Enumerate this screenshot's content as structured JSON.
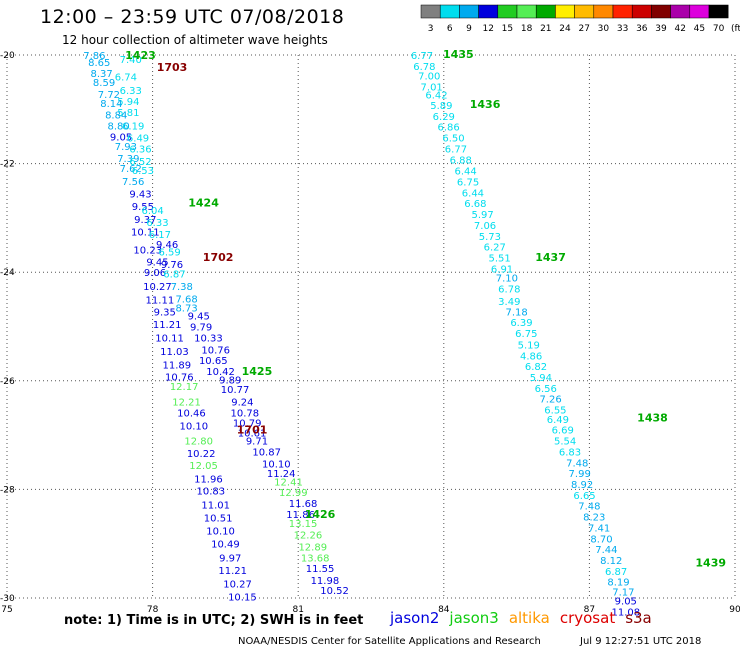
{
  "title": "12:00 – 23:59 UTC 07/08/2018",
  "subtitle": "12 hour collection of altimeter wave heights",
  "note": "note: 1) Time is in UTC; 2) SWH is in feet",
  "satellites": [
    {
      "name": "jason2",
      "color": "#0000dd"
    },
    {
      "name": "jason3",
      "color": "#11cc11"
    },
    {
      "name": "altika",
      "color": "#ff9900"
    },
    {
      "name": "cryosat",
      "color": "#dd0000"
    },
    {
      "name": "s3a",
      "color": "#880000"
    }
  ],
  "footer_left": "NOAA/NESDIS Center for Satellite Applications and Research",
  "footer_right": "Jul  9 12:27:51 UTC 2018",
  "colorscale": {
    "labels": [
      "3",
      "6",
      "9",
      "12",
      "15",
      "18",
      "21",
      "24",
      "27",
      "30",
      "33",
      "36",
      "39",
      "42",
      "45",
      "70",
      "(ft)"
    ],
    "colors": [
      "#808080",
      "#00ddee",
      "#00aaee",
      "#0000dd",
      "#22cc22",
      "#55ee55",
      "#00aa00",
      "#ffee00",
      "#ffbb00",
      "#ff8800",
      "#ff2200",
      "#cc0000",
      "#800000",
      "#aa00aa",
      "#dd00dd",
      "#000000"
    ]
  },
  "chart_data": {
    "type": "scatter",
    "xlim": [
      75,
      90
    ],
    "ylim": [
      -30,
      -20
    ],
    "xticks": [
      75,
      78,
      81,
      84,
      87,
      90
    ],
    "yticks": [
      -20,
      -22,
      -24,
      -26,
      -28,
      -30
    ],
    "passes": [
      {
        "label": "1423",
        "color": "#00aa00",
        "lon": 77.75,
        "lat": -20.0
      },
      {
        "label": "1703",
        "color": "#880000",
        "lon": 78.4,
        "lat": -20.22
      },
      {
        "label": "1424",
        "color": "#00aa00",
        "lon": 79.05,
        "lat": -22.72
      },
      {
        "label": "1702",
        "color": "#880000",
        "lon": 79.35,
        "lat": -23.72
      },
      {
        "label": "1425",
        "color": "#00aa00",
        "lon": 80.15,
        "lat": -25.82
      },
      {
        "label": "1701",
        "color": "#880000",
        "lon": 80.05,
        "lat": -26.9
      },
      {
        "label": "1426",
        "color": "#00aa00",
        "lon": 81.45,
        "lat": -28.45
      },
      {
        "label": "1435",
        "color": "#00aa00",
        "lon": 84.3,
        "lat": -19.98
      },
      {
        "label": "1436",
        "color": "#00aa00",
        "lon": 84.85,
        "lat": -20.9
      },
      {
        "label": "1437",
        "color": "#00aa00",
        "lon": 86.2,
        "lat": -23.72
      },
      {
        "label": "1438",
        "color": "#00aa00",
        "lon": 88.3,
        "lat": -26.68
      },
      {
        "label": "1439",
        "color": "#00aa00",
        "lon": 89.5,
        "lat": -29.35
      }
    ],
    "points": [
      {
        "v": "7.86",
        "color": "#00aaee",
        "lon": 76.8,
        "lat": -20.0
      },
      {
        "v": "7.40",
        "color": "#00ddee",
        "lon": 77.55,
        "lat": -20.07
      },
      {
        "v": "8.65",
        "color": "#00aaee",
        "lon": 76.9,
        "lat": -20.13
      },
      {
        "v": "8.37",
        "color": "#00aaee",
        "lon": 76.95,
        "lat": -20.33
      },
      {
        "v": "6.74",
        "color": "#00ddee",
        "lon": 77.45,
        "lat": -20.4
      },
      {
        "v": "8.59",
        "color": "#00aaee",
        "lon": 77.0,
        "lat": -20.5
      },
      {
        "v": "6.33",
        "color": "#00ddee",
        "lon": 77.55,
        "lat": -20.64
      },
      {
        "v": "7.72",
        "color": "#00aaee",
        "lon": 77.1,
        "lat": -20.72
      },
      {
        "v": "5.94",
        "color": "#00ddee",
        "lon": 77.5,
        "lat": -20.85
      },
      {
        "v": "8.14",
        "color": "#00aaee",
        "lon": 77.15,
        "lat": -20.88
      },
      {
        "v": "5.81",
        "color": "#00ddee",
        "lon": 77.5,
        "lat": -21.05
      },
      {
        "v": "8.84",
        "color": "#00aaee",
        "lon": 77.25,
        "lat": -21.1
      },
      {
        "v": "6.19",
        "color": "#00ddee",
        "lon": 77.6,
        "lat": -21.3
      },
      {
        "v": "8.80",
        "color": "#00aaee",
        "lon": 77.3,
        "lat": -21.3
      },
      {
        "v": "9.05",
        "color": "#0000dd",
        "lon": 77.35,
        "lat": -21.5
      },
      {
        "v": "6.49",
        "color": "#00ddee",
        "lon": 77.7,
        "lat": -21.52
      },
      {
        "v": "7.93",
        "color": "#00aaee",
        "lon": 77.45,
        "lat": -21.68
      },
      {
        "v": "6.36",
        "color": "#00ddee",
        "lon": 77.75,
        "lat": -21.72
      },
      {
        "v": "7.39",
        "color": "#00aaee",
        "lon": 77.5,
        "lat": -21.9
      },
      {
        "v": "6.52",
        "color": "#00ddee",
        "lon": 77.75,
        "lat": -21.95
      },
      {
        "v": "7.62",
        "color": "#00aaee",
        "lon": 77.55,
        "lat": -22.08
      },
      {
        "v": "6.53",
        "color": "#00ddee",
        "lon": 77.8,
        "lat": -22.12
      },
      {
        "v": "7.56",
        "color": "#00aaee",
        "lon": 77.6,
        "lat": -22.32
      },
      {
        "v": "9.43",
        "color": "#0000dd",
        "lon": 77.75,
        "lat": -22.55
      },
      {
        "v": "9.55",
        "color": "#0000dd",
        "lon": 77.8,
        "lat": -22.78
      },
      {
        "v": "6.04",
        "color": "#00ddee",
        "lon": 78.0,
        "lat": -22.85
      },
      {
        "v": "9.37",
        "color": "#0000dd",
        "lon": 77.85,
        "lat": -23.02
      },
      {
        "v": "6.33",
        "color": "#00ddee",
        "lon": 78.1,
        "lat": -23.08
      },
      {
        "v": "10.11",
        "color": "#0000dd",
        "lon": 77.85,
        "lat": -23.25
      },
      {
        "v": "6.17",
        "color": "#00ddee",
        "lon": 78.15,
        "lat": -23.3
      },
      {
        "v": "9.46",
        "color": "#0000dd",
        "lon": 78.3,
        "lat": -23.48
      },
      {
        "v": "10.23",
        "color": "#0000dd",
        "lon": 77.9,
        "lat": -23.58
      },
      {
        "v": "6.59",
        "color": "#00ddee",
        "lon": 78.35,
        "lat": -23.62
      },
      {
        "v": "9.45",
        "color": "#0000dd",
        "lon": 78.1,
        "lat": -23.8
      },
      {
        "v": "9.76",
        "color": "#0000dd",
        "lon": 78.4,
        "lat": -23.85
      },
      {
        "v": "9.06",
        "color": "#0000dd",
        "lon": 78.05,
        "lat": -24.0
      },
      {
        "v": "6.87",
        "color": "#00ddee",
        "lon": 78.45,
        "lat": -24.02
      },
      {
        "v": "10.27",
        "color": "#0000dd",
        "lon": 78.1,
        "lat": -24.25
      },
      {
        "v": "7.38",
        "color": "#00aaee",
        "lon": 78.6,
        "lat": -24.25
      },
      {
        "v": "11.11",
        "color": "#0000dd",
        "lon": 78.15,
        "lat": -24.5
      },
      {
        "v": "7.68",
        "color": "#00aaee",
        "lon": 78.7,
        "lat": -24.48
      },
      {
        "v": "9.35",
        "color": "#0000dd",
        "lon": 78.25,
        "lat": -24.72
      },
      {
        "v": "8.73",
        "color": "#00aaee",
        "lon": 78.7,
        "lat": -24.65
      },
      {
        "v": "9.45",
        "color": "#0000dd",
        "lon": 78.95,
        "lat": -24.8
      },
      {
        "v": "11.21",
        "color": "#0000dd",
        "lon": 78.3,
        "lat": -24.95
      },
      {
        "v": "9.79",
        "color": "#0000dd",
        "lon": 79.0,
        "lat": -25.0
      },
      {
        "v": "10.11",
        "color": "#0000dd",
        "lon": 78.35,
        "lat": -25.2
      },
      {
        "v": "10.33",
        "color": "#0000dd",
        "lon": 79.15,
        "lat": -25.2
      },
      {
        "v": "11.03",
        "color": "#0000dd",
        "lon": 78.45,
        "lat": -25.45
      },
      {
        "v": "10.76",
        "color": "#0000dd",
        "lon": 79.3,
        "lat": -25.42
      },
      {
        "v": "11.89",
        "color": "#0000dd",
        "lon": 78.5,
        "lat": -25.7
      },
      {
        "v": "10.65",
        "color": "#0000dd",
        "lon": 79.25,
        "lat": -25.62
      },
      {
        "v": "10.42",
        "color": "#0000dd",
        "lon": 79.4,
        "lat": -25.82
      },
      {
        "v": "10.76",
        "color": "#0000dd",
        "lon": 78.55,
        "lat": -25.92
      },
      {
        "v": "9.89",
        "color": "#0000dd",
        "lon": 79.6,
        "lat": -25.98
      },
      {
        "v": "12.17",
        "color": "#55ee55",
        "lon": 78.65,
        "lat": -26.1
      },
      {
        "v": "10.77",
        "color": "#0000dd",
        "lon": 79.7,
        "lat": -26.15
      },
      {
        "v": "12.21",
        "color": "#55ee55",
        "lon": 78.7,
        "lat": -26.38
      },
      {
        "v": "9.24",
        "color": "#0000dd",
        "lon": 79.85,
        "lat": -26.38
      },
      {
        "v": "10.46",
        "color": "#0000dd",
        "lon": 78.8,
        "lat": -26.58
      },
      {
        "v": "10.78",
        "color": "#0000dd",
        "lon": 79.9,
        "lat": -26.58
      },
      {
        "v": "10.10",
        "color": "#0000dd",
        "lon": 78.85,
        "lat": -26.82
      },
      {
        "v": "10.79",
        "color": "#0000dd",
        "lon": 79.95,
        "lat": -26.77
      },
      {
        "v": "10.61",
        "color": "#0000dd",
        "lon": 80.05,
        "lat": -26.95
      },
      {
        "v": "12.80",
        "color": "#55ee55",
        "lon": 78.95,
        "lat": -27.1
      },
      {
        "v": "9.71",
        "color": "#0000dd",
        "lon": 80.15,
        "lat": -27.1
      },
      {
        "v": "10.22",
        "color": "#0000dd",
        "lon": 79.0,
        "lat": -27.33
      },
      {
        "v": "10.87",
        "color": "#0000dd",
        "lon": 80.35,
        "lat": -27.3
      },
      {
        "v": "10.10",
        "color": "#0000dd",
        "lon": 80.55,
        "lat": -27.52
      },
      {
        "v": "12.05",
        "color": "#55ee55",
        "lon": 79.05,
        "lat": -27.55
      },
      {
        "v": "11.24",
        "color": "#0000dd",
        "lon": 80.65,
        "lat": -27.7
      },
      {
        "v": "11.96",
        "color": "#0000dd",
        "lon": 79.15,
        "lat": -27.8
      },
      {
        "v": "12.41",
        "color": "#55ee55",
        "lon": 80.8,
        "lat": -27.85
      },
      {
        "v": "10.83",
        "color": "#0000dd",
        "lon": 79.2,
        "lat": -28.02
      },
      {
        "v": "12.99",
        "color": "#55ee55",
        "lon": 80.9,
        "lat": -28.05
      },
      {
        "v": "11.01",
        "color": "#0000dd",
        "lon": 79.3,
        "lat": -28.28
      },
      {
        "v": "11.68",
        "color": "#0000dd",
        "lon": 81.1,
        "lat": -28.25
      },
      {
        "v": "11.86",
        "color": "#0000dd",
        "lon": 81.05,
        "lat": -28.45
      },
      {
        "v": "10.51",
        "color": "#0000dd",
        "lon": 79.35,
        "lat": -28.52
      },
      {
        "v": "13.15",
        "color": "#55ee55",
        "lon": 81.1,
        "lat": -28.62
      },
      {
        "v": "10.10",
        "color": "#0000dd",
        "lon": 79.4,
        "lat": -28.76
      },
      {
        "v": "12.26",
        "color": "#55ee55",
        "lon": 81.2,
        "lat": -28.83
      },
      {
        "v": "10.49",
        "color": "#0000dd",
        "lon": 79.5,
        "lat": -29.0
      },
      {
        "v": "12.89",
        "color": "#55ee55",
        "lon": 81.3,
        "lat": -29.05
      },
      {
        "v": "9.97",
        "color": "#0000dd",
        "lon": 79.6,
        "lat": -29.25
      },
      {
        "v": "13.68",
        "color": "#55ee55",
        "lon": 81.35,
        "lat": -29.25
      },
      {
        "v": "11.21",
        "color": "#0000dd",
        "lon": 79.65,
        "lat": -29.48
      },
      {
        "v": "11.55",
        "color": "#0000dd",
        "lon": 81.45,
        "lat": -29.45
      },
      {
        "v": "11.98",
        "color": "#0000dd",
        "lon": 81.55,
        "lat": -29.67
      },
      {
        "v": "10.27",
        "color": "#0000dd",
        "lon": 79.75,
        "lat": -29.73
      },
      {
        "v": "10.52",
        "color": "#0000dd",
        "lon": 81.75,
        "lat": -29.85
      },
      {
        "v": "10.15",
        "color": "#0000dd",
        "lon": 79.85,
        "lat": -29.97
      },
      {
        "v": "6.77",
        "color": "#00ddee",
        "lon": 83.55,
        "lat": -20.0
      },
      {
        "v": "6.78",
        "color": "#00ddee",
        "lon": 83.6,
        "lat": -20.2
      },
      {
        "v": "7.00",
        "color": "#00ddee",
        "lon": 83.7,
        "lat": -20.38
      },
      {
        "v": "7.01",
        "color": "#00ddee",
        "lon": 83.75,
        "lat": -20.58
      },
      {
        "v": "6.42",
        "color": "#00ddee",
        "lon": 83.85,
        "lat": -20.73
      },
      {
        "v": "5.89",
        "color": "#00ddee",
        "lon": 83.95,
        "lat": -20.92
      },
      {
        "v": "6.29",
        "color": "#00ddee",
        "lon": 84.0,
        "lat": -21.12
      },
      {
        "v": "6.86",
        "color": "#00ddee",
        "lon": 84.1,
        "lat": -21.32
      },
      {
        "v": "6.50",
        "color": "#00ddee",
        "lon": 84.2,
        "lat": -21.52
      },
      {
        "v": "6.77",
        "color": "#00ddee",
        "lon": 84.25,
        "lat": -21.72
      },
      {
        "v": "6.88",
        "color": "#00ddee",
        "lon": 84.35,
        "lat": -21.92
      },
      {
        "v": "6.44",
        "color": "#00ddee",
        "lon": 84.45,
        "lat": -22.13
      },
      {
        "v": "6.75",
        "color": "#00ddee",
        "lon": 84.5,
        "lat": -22.33
      },
      {
        "v": "6.44",
        "color": "#00ddee",
        "lon": 84.6,
        "lat": -22.53
      },
      {
        "v": "6.68",
        "color": "#00ddee",
        "lon": 84.65,
        "lat": -22.73
      },
      {
        "v": "5.97",
        "color": "#00ddee",
        "lon": 84.8,
        "lat": -22.93
      },
      {
        "v": "7.06",
        "color": "#00ddee",
        "lon": 84.85,
        "lat": -23.13
      },
      {
        "v": "5.73",
        "color": "#00ddee",
        "lon": 84.95,
        "lat": -23.33
      },
      {
        "v": "6.27",
        "color": "#00ddee",
        "lon": 85.05,
        "lat": -23.53
      },
      {
        "v": "5.51",
        "color": "#00ddee",
        "lon": 85.15,
        "lat": -23.73
      },
      {
        "v": "6.91",
        "color": "#00ddee",
        "lon": 85.2,
        "lat": -23.93
      },
      {
        "v": "7.10",
        "color": "#00aaee",
        "lon": 85.3,
        "lat": -24.1
      },
      {
        "v": "6.78",
        "color": "#00ddee",
        "lon": 85.35,
        "lat": -24.3
      },
      {
        "v": "3.49",
        "color": "#00ddee",
        "lon": 85.35,
        "lat": -24.53
      },
      {
        "v": "7.18",
        "color": "#00aaee",
        "lon": 85.5,
        "lat": -24.72
      },
      {
        "v": "6.39",
        "color": "#00ddee",
        "lon": 85.6,
        "lat": -24.92
      },
      {
        "v": "6.75",
        "color": "#00ddee",
        "lon": 85.7,
        "lat": -25.12
      },
      {
        "v": "5.19",
        "color": "#00ddee",
        "lon": 85.75,
        "lat": -25.33
      },
      {
        "v": "4.86",
        "color": "#00ddee",
        "lon": 85.8,
        "lat": -25.53
      },
      {
        "v": "6.82",
        "color": "#00ddee",
        "lon": 85.9,
        "lat": -25.73
      },
      {
        "v": "5.94",
        "color": "#00ddee",
        "lon": 86.0,
        "lat": -25.93
      },
      {
        "v": "6.56",
        "color": "#00ddee",
        "lon": 86.1,
        "lat": -26.13
      },
      {
        "v": "7.26",
        "color": "#00aaee",
        "lon": 86.2,
        "lat": -26.33
      },
      {
        "v": "6.55",
        "color": "#00ddee",
        "lon": 86.3,
        "lat": -26.53
      },
      {
        "v": "6.49",
        "color": "#00ddee",
        "lon": 86.35,
        "lat": -26.7
      },
      {
        "v": "6.69",
        "color": "#00ddee",
        "lon": 86.45,
        "lat": -26.9
      },
      {
        "v": "5.54",
        "color": "#00ddee",
        "lon": 86.5,
        "lat": -27.1
      },
      {
        "v": "6.83",
        "color": "#00ddee",
        "lon": 86.6,
        "lat": -27.3
      },
      {
        "v": "7.48",
        "color": "#00aaee",
        "lon": 86.75,
        "lat": -27.5
      },
      {
        "v": "7.99",
        "color": "#00aaee",
        "lon": 86.8,
        "lat": -27.7
      },
      {
        "v": "8.92",
        "color": "#00aaee",
        "lon": 86.85,
        "lat": -27.9
      },
      {
        "v": "6.65",
        "color": "#00ddee",
        "lon": 86.9,
        "lat": -28.1
      },
      {
        "v": "7.48",
        "color": "#00aaee",
        "lon": 87.0,
        "lat": -28.3
      },
      {
        "v": "8.23",
        "color": "#00aaee",
        "lon": 87.1,
        "lat": -28.5
      },
      {
        "v": "7.41",
        "color": "#00aaee",
        "lon": 87.2,
        "lat": -28.7
      },
      {
        "v": "8.70",
        "color": "#00aaee",
        "lon": 87.25,
        "lat": -28.9
      },
      {
        "v": "7.44",
        "color": "#00aaee",
        "lon": 87.35,
        "lat": -29.1
      },
      {
        "v": "8.12",
        "color": "#00aaee",
        "lon": 87.45,
        "lat": -29.3
      },
      {
        "v": "6.87",
        "color": "#00ddee",
        "lon": 87.55,
        "lat": -29.5
      },
      {
        "v": "8.19",
        "color": "#00aaee",
        "lon": 87.6,
        "lat": -29.7
      },
      {
        "v": "7.17",
        "color": "#00aaee",
        "lon": 87.7,
        "lat": -29.88
      },
      {
        "v": "9.05",
        "color": "#0000dd",
        "lon": 87.75,
        "lat": -30.05
      },
      {
        "v": "11.08",
        "color": "#0000dd",
        "lon": 87.75,
        "lat": -30.25
      }
    ]
  }
}
